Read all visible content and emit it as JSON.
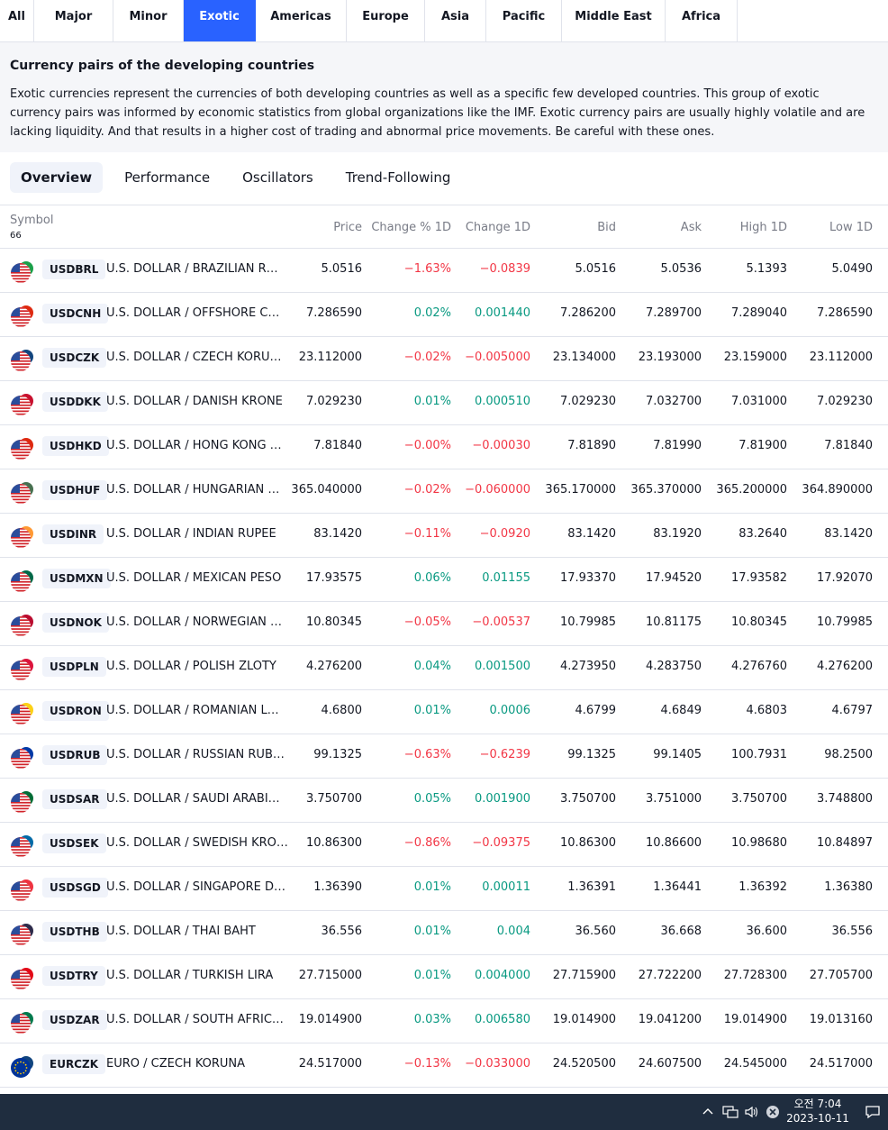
{
  "region_tabs": [
    {
      "label": "All",
      "active": false
    },
    {
      "label": "Major",
      "active": false
    },
    {
      "label": "Minor",
      "active": false
    },
    {
      "label": "Exotic",
      "active": true
    },
    {
      "label": "Americas",
      "active": false
    },
    {
      "label": "Europe",
      "active": false
    },
    {
      "label": "Asia",
      "active": false
    },
    {
      "label": "Pacific",
      "active": false
    },
    {
      "label": "Middle East",
      "active": false
    },
    {
      "label": "Africa",
      "active": false
    }
  ],
  "info": {
    "title": "Currency pairs of the developing countries",
    "text": "Exotic currencies represent the currencies of both developing countries as well as a specific few developed countries. This group of exotic currency pairs was informed by economic statistics from global organizations like the IMF. Exotic currency pairs are usually highly volatile and are lacking liquidity. And that results in a higher cost of trading and abnormal price movements. Be careful with these ones."
  },
  "view_tabs": [
    {
      "label": "Overview",
      "active": true
    },
    {
      "label": "Performance",
      "active": false
    },
    {
      "label": "Oscillators",
      "active": false
    },
    {
      "label": "Trend-Following",
      "active": false
    }
  ],
  "table": {
    "headers": {
      "symbol": "Symbol",
      "count": "66",
      "price": "Price",
      "change_pct": "Change % 1D",
      "change_abs": "Change 1D",
      "bid": "Bid",
      "ask": "Ask",
      "high": "High 1D",
      "low": "Low 1D"
    },
    "rows": [
      {
        "ticker": "USDBRL",
        "name": "U.S. DOLLAR / BRAZILIAN R…",
        "price": "5.0516",
        "chg_pct": "−1.63%",
        "chg": "−0.0839",
        "dir": "neg",
        "bid": "5.0516",
        "ask": "5.0536",
        "high": "5.1393",
        "low": "5.0490",
        "flag": "#1aa049"
      },
      {
        "ticker": "USDCNH",
        "name": "U.S. DOLLAR / OFFSHORE C…",
        "price": "7.286590",
        "chg_pct": "0.02%",
        "chg": "0.001440",
        "dir": "pos",
        "bid": "7.286200",
        "ask": "7.289700",
        "high": "7.289040",
        "low": "7.286590",
        "flag": "#de2910"
      },
      {
        "ticker": "USDCZK",
        "name": "U.S. DOLLAR / CZECH KORU…",
        "price": "23.112000",
        "chg_pct": "−0.02%",
        "chg": "−0.005000",
        "dir": "neg",
        "bid": "23.134000",
        "ask": "23.193000",
        "high": "23.159000",
        "low": "23.112000",
        "flag": "#11457e"
      },
      {
        "ticker": "USDDKK",
        "name": "U.S. DOLLAR / DANISH KRONE",
        "price": "7.029230",
        "chg_pct": "0.01%",
        "chg": "0.000510",
        "dir": "pos",
        "bid": "7.029230",
        "ask": "7.032700",
        "high": "7.031000",
        "low": "7.029230",
        "flag": "#c8102e"
      },
      {
        "ticker": "USDHKD",
        "name": "U.S. DOLLAR / HONG KONG …",
        "price": "7.81840",
        "chg_pct": "−0.00%",
        "chg": "−0.00030",
        "dir": "neg",
        "bid": "7.81890",
        "ask": "7.81990",
        "high": "7.81900",
        "low": "7.81840",
        "flag": "#de2910"
      },
      {
        "ticker": "USDHUF",
        "name": "U.S. DOLLAR / HUNGARIAN …",
        "price": "365.040000",
        "chg_pct": "−0.02%",
        "chg": "−0.060000",
        "dir": "neg",
        "bid": "365.170000",
        "ask": "365.370000",
        "high": "365.200000",
        "low": "364.890000",
        "flag": "#477050"
      },
      {
        "ticker": "USDINR",
        "name": "U.S. DOLLAR / INDIAN RUPEE",
        "price": "83.1420",
        "chg_pct": "−0.11%",
        "chg": "−0.0920",
        "dir": "neg",
        "bid": "83.1420",
        "ask": "83.1920",
        "high": "83.2640",
        "low": "83.1420",
        "flag": "#ff9933"
      },
      {
        "ticker": "USDMXN",
        "name": "U.S. DOLLAR / MEXICAN PESO",
        "price": "17.93575",
        "chg_pct": "0.06%",
        "chg": "0.01155",
        "dir": "pos",
        "bid": "17.93370",
        "ask": "17.94520",
        "high": "17.93582",
        "low": "17.92070",
        "flag": "#006847"
      },
      {
        "ticker": "USDNOK",
        "name": "U.S. DOLLAR / NORWEGIAN …",
        "price": "10.80345",
        "chg_pct": "−0.05%",
        "chg": "−0.00537",
        "dir": "neg",
        "bid": "10.79985",
        "ask": "10.81175",
        "high": "10.80345",
        "low": "10.79985",
        "flag": "#ba0c2f"
      },
      {
        "ticker": "USDPLN",
        "name": "U.S. DOLLAR / POLISH ZLOTY",
        "price": "4.276200",
        "chg_pct": "0.04%",
        "chg": "0.001500",
        "dir": "pos",
        "bid": "4.273950",
        "ask": "4.283750",
        "high": "4.276760",
        "low": "4.276200",
        "flag": "#dc143c"
      },
      {
        "ticker": "USDRON",
        "name": "U.S. DOLLAR / ROMANIAN L…",
        "price": "4.6800",
        "chg_pct": "0.01%",
        "chg": "0.0006",
        "dir": "pos",
        "bid": "4.6799",
        "ask": "4.6849",
        "high": "4.6803",
        "low": "4.6797",
        "flag": "#fcd116"
      },
      {
        "ticker": "USDRUB",
        "name": "U.S. DOLLAR / RUSSIAN RUB…",
        "price": "99.1325",
        "chg_pct": "−0.63%",
        "chg": "−0.6239",
        "dir": "neg",
        "bid": "99.1325",
        "ask": "99.1405",
        "high": "100.7931",
        "low": "98.2500",
        "flag": "#0039a6"
      },
      {
        "ticker": "USDSAR",
        "name": "U.S. DOLLAR / SAUDI ARABI…",
        "price": "3.750700",
        "chg_pct": "0.05%",
        "chg": "0.001900",
        "dir": "pos",
        "bid": "3.750700",
        "ask": "3.751000",
        "high": "3.750700",
        "low": "3.748800",
        "flag": "#006c35"
      },
      {
        "ticker": "USDSEK",
        "name": "U.S. DOLLAR / SWEDISH KRO…",
        "price": "10.86300",
        "chg_pct": "−0.86%",
        "chg": "−0.09375",
        "dir": "neg",
        "bid": "10.86300",
        "ask": "10.86600",
        "high": "10.98680",
        "low": "10.84897",
        "flag": "#006aa7"
      },
      {
        "ticker": "USDSGD",
        "name": "U.S. DOLLAR / SINGAPORE D…",
        "price": "1.36390",
        "chg_pct": "0.01%",
        "chg": "0.00011",
        "dir": "pos",
        "bid": "1.36391",
        "ask": "1.36441",
        "high": "1.36392",
        "low": "1.36380",
        "flag": "#ef3340"
      },
      {
        "ticker": "USDTHB",
        "name": "U.S. DOLLAR / THAI BAHT",
        "price": "36.556",
        "chg_pct": "0.01%",
        "chg": "0.004",
        "dir": "pos",
        "bid": "36.560",
        "ask": "36.668",
        "high": "36.600",
        "low": "36.556",
        "flag": "#2d2a4a"
      },
      {
        "ticker": "USDTRY",
        "name": "U.S. DOLLAR / TURKISH LIRA",
        "price": "27.715000",
        "chg_pct": "0.01%",
        "chg": "0.004000",
        "dir": "pos",
        "bid": "27.715900",
        "ask": "27.722200",
        "high": "27.728300",
        "low": "27.705700",
        "flag": "#e30a17"
      },
      {
        "ticker": "USDZAR",
        "name": "U.S. DOLLAR / SOUTH AFRIC…",
        "price": "19.014900",
        "chg_pct": "0.03%",
        "chg": "0.006580",
        "dir": "pos",
        "bid": "19.014900",
        "ask": "19.041200",
        "high": "19.014900",
        "low": "19.013160",
        "flag": "#007a4d"
      },
      {
        "ticker": "EURCZK",
        "name": "EURO / CZECH KORUNA",
        "price": "24.517000",
        "chg_pct": "−0.13%",
        "chg": "−0.033000",
        "dir": "neg",
        "bid": "24.520500",
        "ask": "24.607500",
        "high": "24.545000",
        "low": "24.517000",
        "flag": "#11457e",
        "base": "eu"
      }
    ]
  },
  "taskbar": {
    "time": "오전 7:04",
    "date": "2023-10-11"
  },
  "colors": {
    "accent": "#2962ff",
    "positive": "#089981",
    "negative": "#f23645",
    "taskbar": "#1f2d3f"
  }
}
